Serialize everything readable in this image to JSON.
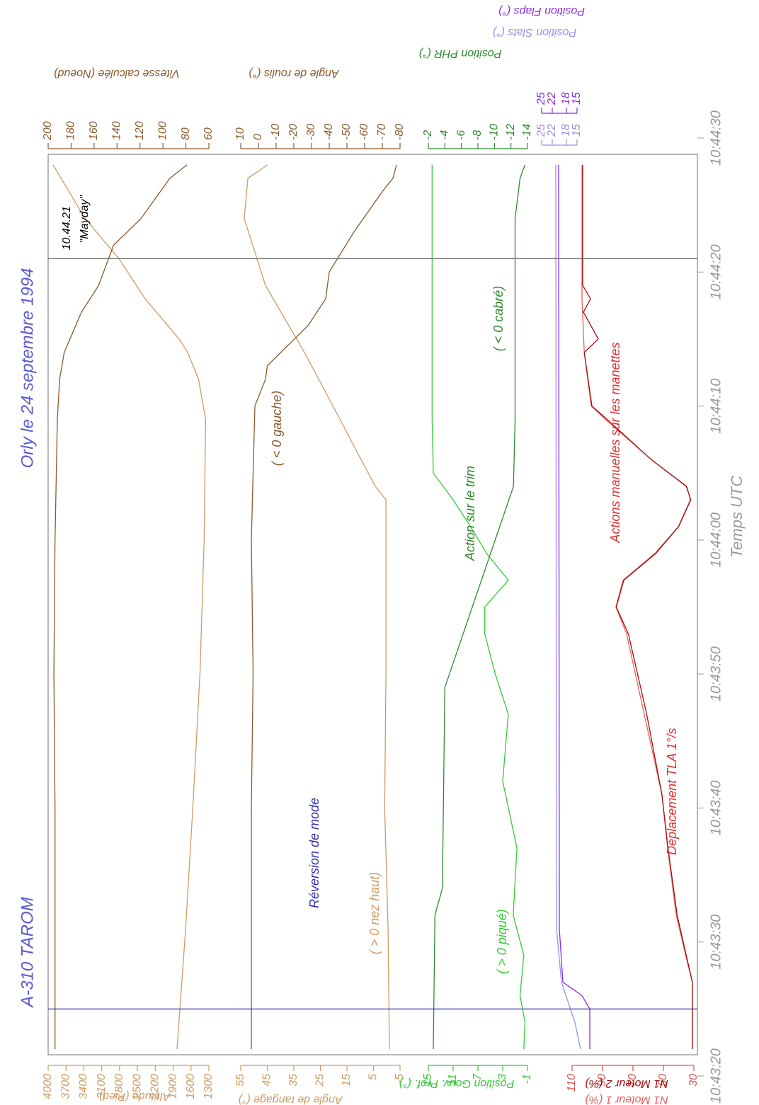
{
  "chart_data": {
    "type": "line",
    "title": "A-310 TAROM",
    "subtitle": "Orly le 24 septembre 1994",
    "x_label": "Temps UTC",
    "xlim": [
      "10:43:20",
      "10:44:30"
    ],
    "xticks": [
      "10:43:20",
      "10:43:30",
      "10:43:40",
      "10:43:50",
      "10:44:00",
      "10:44:10",
      "10:44:20",
      "10:44:30"
    ],
    "axes": [
      {
        "ylim": [
          4000,
          1300
        ],
        "yticks": [
          4000,
          3700,
          3400,
          3100,
          2800,
          2500,
          2200,
          1900,
          1600,
          1300
        ],
        "color": "#d09a62",
        "series": [
          {
            "name": "Altitude (Pied)",
            "color": "#d09a62",
            "x": [
              "10:43:22",
              "10:43:31",
              "10:43:40",
              "10:43:50",
              "10:44:00",
              "10:44:09",
              "10:44:12",
              "10:44:14",
              "10:44:15",
              "10:44:18",
              "10:44:21",
              "10:44:24",
              "10:44:28"
            ],
            "values": [
              1835,
              1690,
              1570,
              1450,
              1380,
              1355,
              1474,
              1656,
              1800,
              2370,
              2810,
              3381,
              3917
            ]
          }
        ]
      },
      {
        "ylim": [
          200,
          60
        ],
        "yticks": [
          200,
          180,
          160,
          140,
          120,
          100,
          80,
          60
        ],
        "color": "#8b5a2b",
        "series": [
          {
            "name": "Vitesse calculée (Noeud)",
            "color": "#8b5a2b",
            "x": [
              "10:43:22",
              "10:43:40",
              "10:43:50",
              "10:44:00",
              "10:44:09",
              "10:44:12",
              "10:44:14",
              "10:44:17",
              "10:44:19",
              "10:44:22",
              "10:44:24",
              "10:44:27",
              "10:44:28"
            ],
            "values": [
              194,
              194,
              195,
              194,
              192,
              190,
              186,
              171,
              156,
              143,
              119,
              94,
              79
            ]
          }
        ]
      },
      {
        "ylim": [
          55,
          -5
        ],
        "yticks": [
          55,
          45,
          35,
          25,
          15,
          5,
          -5
        ],
        "color": "#d09a62",
        "series": [
          {
            "name": "Angle de tangage (°)",
            "color": "#d09a62",
            "x": [
              "10:43:22",
              "10:43:31",
              "10:43:40",
              "10:43:50",
              "10:44:00",
              "10:44:03",
              "10:44:04",
              "10:44:07",
              "10:44:09",
              "10:44:14",
              "10:44:19",
              "10:44:24",
              "10:44:27",
              "10:44:28"
            ],
            "values": [
              -1,
              -0.5,
              0.8,
              0.3,
              0.3,
              0.3,
              4.3,
              12.3,
              17.6,
              31,
              45.7,
              53.7,
              52.3,
              44.9
            ]
          }
        ]
      },
      {
        "ylim": [
          10,
          -80
        ],
        "yticks": [
          10,
          0,
          -10,
          -20,
          -30,
          -40,
          -50,
          -60,
          -70,
          -80
        ],
        "color": "#8b5a2b",
        "series": [
          {
            "name": "Angle de roulis (°)",
            "color": "#8b5a2b",
            "x": [
              "10:43:22",
              "10:43:40",
              "10:43:50",
              "10:44:00",
              "10:44:10",
              "10:44:12",
              "10:44:13",
              "10:44:16",
              "10:44:18",
              "10:44:20",
              "10:44:23",
              "10:44:26",
              "10:44:27",
              "10:44:28"
            ],
            "values": [
              4,
              4,
              3,
              4,
              2,
              -4,
              -5,
              -28,
              -38,
              -40,
              -54,
              -70,
              -76,
              -78
            ]
          }
        ]
      },
      {
        "ylim": [
          15,
          -1
        ],
        "yticks": [
          15,
          11,
          7,
          3,
          -1
        ],
        "color": "#33cc33",
        "series": [
          {
            "name": "Position Gouv. Prof. (°)",
            "color": "#33cc33",
            "x": [
              "10:43:22",
              "10:43:24",
              "10:43:26",
              "10:43:29",
              "10:43:32",
              "10:43:37",
              "10:43:42",
              "10:43:47",
              "10:43:50",
              "10:43:53",
              "10:43:55",
              "10:43:57",
              "10:43:59",
              "10:44:01",
              "10:44:03",
              "10:44:05",
              "10:44:09",
              "10:44:28"
            ],
            "values": [
              -0.4,
              -0.6,
              0.2,
              -0.4,
              1.3,
              0.7,
              3.0,
              2.1,
              4.2,
              5.9,
              5.9,
              2.1,
              5.6,
              8.2,
              11.0,
              14.2,
              14.4,
              14.4
            ]
          }
        ]
      },
      {
        "ylim": [
          -2,
          -14
        ],
        "yticks": [
          -2,
          -4,
          -6,
          -8,
          -10,
          -12,
          -14
        ],
        "color": "#2e8b2e",
        "series": [
          {
            "name": "Position PHR (°)",
            "color": "#2e8b2e",
            "x": [
              "10:43:22",
              "10:43:32",
              "10:43:34",
              "10:43:49",
              "10:44:04",
              "10:44:09",
              "10:44:24",
              "10:44:27",
              "10:44:28"
            ],
            "values": [
              -2.6,
              -2.8,
              -3.7,
              -4,
              -12.3,
              -12.5,
              -12.5,
              -13.1,
              -13.7
            ]
          }
        ]
      },
      {
        "ylim": [
          110,
          30
        ],
        "yticks": [
          110,
          90,
          70,
          50,
          30
        ],
        "color": "#e05050",
        "series": [
          {
            "name": "N1 Moteur 1 (%)",
            "color": "#e86060",
            "x": [
              "10:43:22",
              "10:43:27",
              "10:43:29",
              "10:43:32",
              "10:43:37",
              "10:43:41",
              "10:43:47",
              "10:43:53",
              "10:43:55",
              "10:43:57",
              "10:43:59",
              "10:44:01",
              "10:44:03",
              "10:44:04",
              "10:44:06",
              "10:44:09",
              "10:44:10",
              "10:44:14",
              "10:44:18",
              "10:44:28"
            ],
            "values": [
              31,
              31,
              35.4,
              41.6,
              47.2,
              51,
              62.6,
              74.2,
              81.2,
              76.5,
              55.6,
              40.2,
              32.3,
              34.6,
              57.9,
              88.1,
              97.4,
              102,
              103.5,
              103.5
            ]
          },
          {
            "name": "N1 Moteur 2 (%)",
            "color": "#a01010",
            "x": [
              "10:43:22",
              "10:43:27",
              "10:43:29",
              "10:43:32",
              "10:43:37",
              "10:43:41",
              "10:43:47",
              "10:43:53",
              "10:43:55",
              "10:43:57",
              "10:43:59",
              "10:44:01",
              "10:44:03",
              "10:44:04",
              "10:44:06",
              "10:44:09",
              "10:44:10",
              "10:44:14",
              "10:44:15",
              "10:44:17",
              "10:44:18",
              "10:44:19",
              "10:44:28"
            ],
            "values": [
              31,
              31,
              35,
              41,
              47,
              51,
              61,
              73,
              81,
              76,
              55,
              40,
              32,
              35,
              58,
              87,
              97,
              102,
              92.8,
              102.5,
              97.9,
              103,
              103
            ]
          }
        ]
      },
      {
        "ylim": [
          25,
          15
        ],
        "yticks": [
          25,
          22,
          18,
          15
        ],
        "color": "#9b8fe6",
        "series": [
          {
            "name": "Position Slats (°)",
            "color": "#9b8fe6",
            "x": [
              "10:43:22",
              "10:43:24",
              "10:43:27",
              "10:43:31",
              "10:44:28"
            ],
            "values": [
              14,
              15.6,
              19.4,
              20.8,
              21
            ]
          }
        ]
      },
      {
        "ylim": [
          25,
          15
        ],
        "yticks": [
          25,
          22,
          18,
          15
        ],
        "color": "#8a2be2",
        "series": [
          {
            "name": "Position Flaps (°)",
            "color": "#8a2be2",
            "x": [
              "10:43:22",
              "10:43:25",
              "10:43:26",
              "10:43:27",
              "10:43:31",
              "10:44:28"
            ],
            "values": [
              11.4,
              11.4,
              13.6,
              19,
              20,
              20.2
            ]
          }
        ]
      }
    ],
    "events": [
      {
        "x": "10:43:25",
        "color": "#3030b0"
      },
      {
        "x": "10:44:21",
        "color": "#707070",
        "label": "10.44.21",
        "note": "\"Mayday\""
      }
    ],
    "annotations": [
      {
        "text": "Réversion de mode",
        "color": "#3030b0"
      },
      {
        "text": "( > 0 nez haut)",
        "color": "#d09a62"
      },
      {
        "text": "( > 0 piqué)",
        "color": "#33cc33"
      },
      {
        "text": "( < 0 gauche)",
        "color": "#8b5a2b"
      },
      {
        "text": "Action sur le trim",
        "color": "#2e8b2e"
      },
      {
        "text": "( < 0 cabré)",
        "color": "#2e8b2e"
      },
      {
        "text": "Actions manuelles sur les manettes",
        "color": "#e03030"
      },
      {
        "text": "Déplacement TLA 1°/s",
        "color": "#e03030"
      }
    ]
  }
}
